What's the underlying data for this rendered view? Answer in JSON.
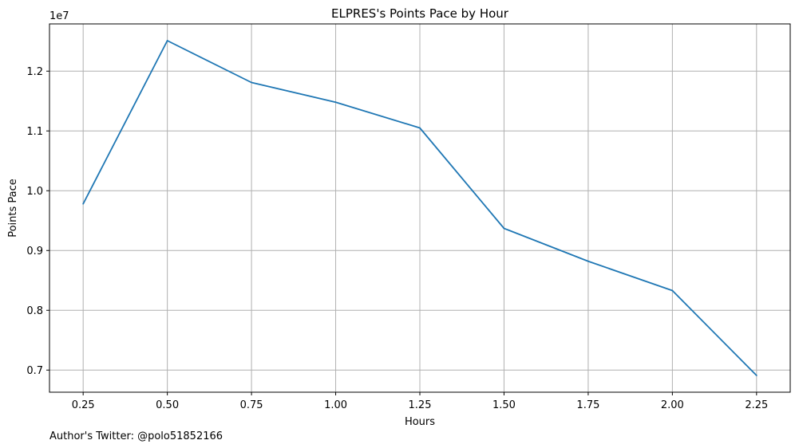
{
  "chart_data": {
    "type": "line",
    "title": "ELPRES's Points Pace by Hour",
    "xlabel": "Hours",
    "ylabel": "Points Pace",
    "y_offset_label": "1e7",
    "x": [
      0.25,
      0.5,
      0.75,
      1.0,
      1.25,
      1.5,
      1.75,
      2.0,
      2.25
    ],
    "series": [
      {
        "name": "Points Pace",
        "color": "#1f77b4",
        "values": [
          9780000,
          12510000,
          11810000,
          11480000,
          11050000,
          9370000,
          8820000,
          8330000,
          6910000
        ]
      }
    ],
    "xlim": [
      0.15,
      2.35
    ],
    "ylim": [
      6630000,
      12790000
    ],
    "x_ticks": [
      0.25,
      0.5,
      0.75,
      1.0,
      1.25,
      1.5,
      1.75,
      2.0,
      2.25
    ],
    "x_tick_labels": [
      "0.25",
      "0.50",
      "0.75",
      "1.00",
      "1.25",
      "1.50",
      "1.75",
      "2.00",
      "2.25"
    ],
    "y_ticks": [
      7000000,
      8000000,
      9000000,
      10000000,
      11000000,
      12000000
    ],
    "y_tick_labels": [
      "0.7",
      "0.8",
      "0.9",
      "1.0",
      "1.1",
      "1.2"
    ],
    "grid": true,
    "grid_color": "#b0b0b0",
    "footnote": "Author's Twitter: @polo51852166"
  }
}
